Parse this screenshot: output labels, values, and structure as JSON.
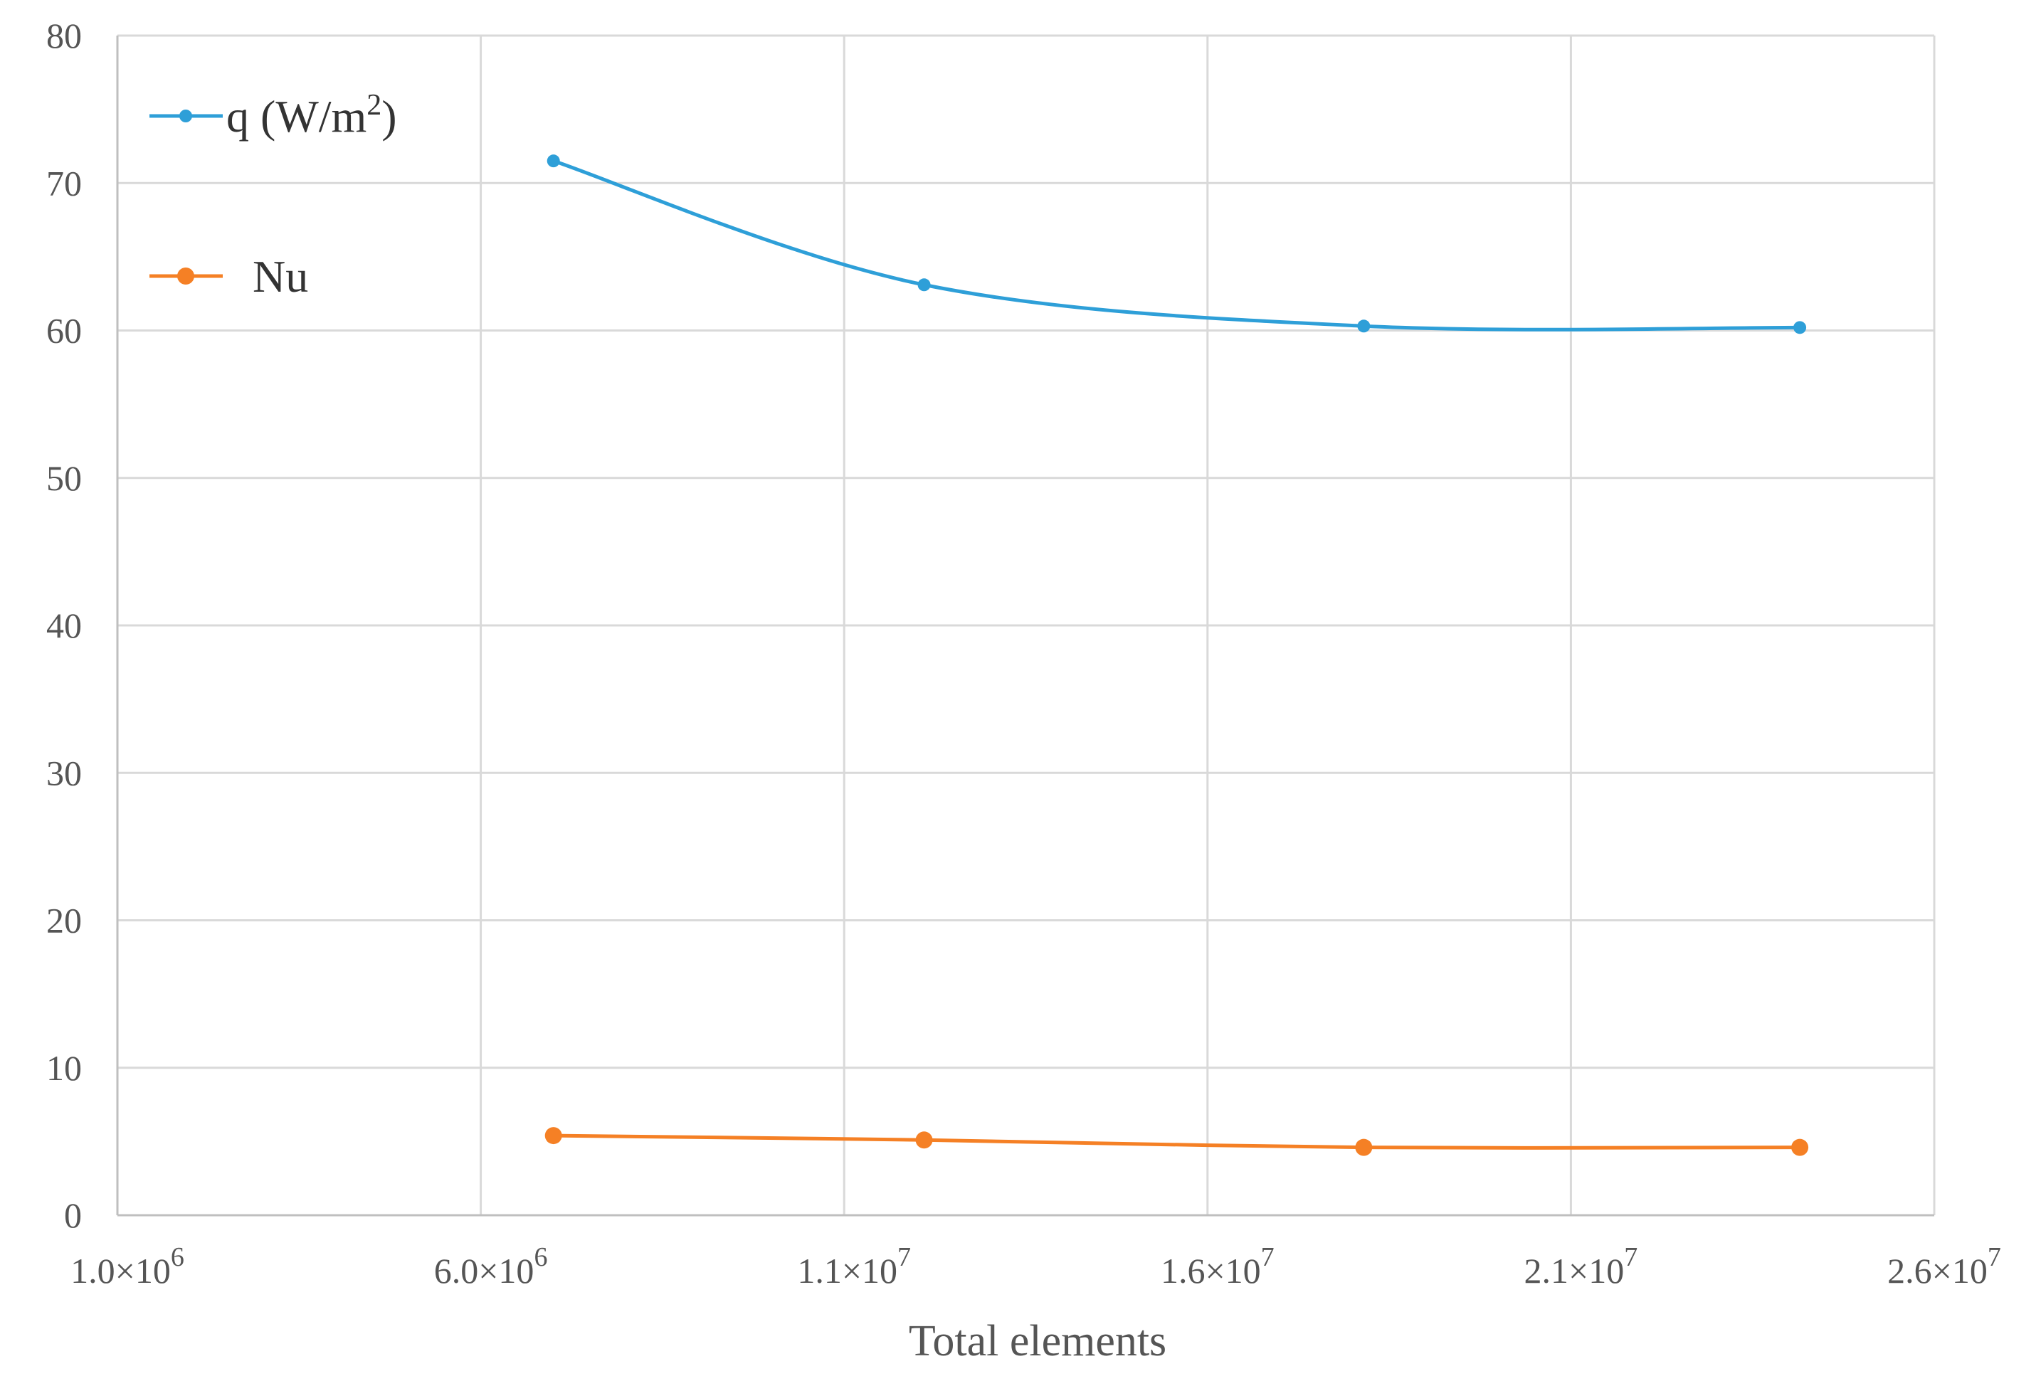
{
  "chart_data": {
    "type": "line",
    "title": "",
    "xlabel": "Total elements",
    "ylabel": "",
    "xlim": [
      1000000,
      26000000
    ],
    "ylim": [
      0,
      80
    ],
    "x_ticks": [
      1000000,
      6000000,
      11000000,
      16000000,
      21000000,
      26000000
    ],
    "x_tick_labels": [
      {
        "mantissa": "1.0×10",
        "exp": "6"
      },
      {
        "mantissa": "6.0×10",
        "exp": "6"
      },
      {
        "mantissa": "1.1×10",
        "exp": "7"
      },
      {
        "mantissa": "1.6×10",
        "exp": "7"
      },
      {
        "mantissa": "2.1×10",
        "exp": "7"
      },
      {
        "mantissa": "2.6×10",
        "exp": "7"
      }
    ],
    "y_ticks": [
      0,
      10,
      20,
      30,
      40,
      50,
      60,
      70,
      80
    ],
    "y_tick_labels": [
      "0",
      "10",
      "20",
      "30",
      "40",
      "50",
      "60",
      "70",
      "80"
    ],
    "grid": true,
    "legend_position": "top-left",
    "series": [
      {
        "name": "q (W/m²)",
        "name_base": "q (W/m",
        "name_sup": "2",
        "name_end": ")",
        "color": "#2e9fd8",
        "x": [
          7000000,
          12100000,
          18150000,
          24150000
        ],
        "y": [
          71.5,
          63.1,
          60.3,
          60.2
        ]
      },
      {
        "name": "Nu",
        "name_base": "Nu",
        "name_sup": "",
        "name_end": "",
        "color": "#f58025",
        "x": [
          7000000,
          12100000,
          18150000,
          24150000
        ],
        "y": [
          5.4,
          5.1,
          4.6,
          4.6
        ]
      }
    ]
  }
}
